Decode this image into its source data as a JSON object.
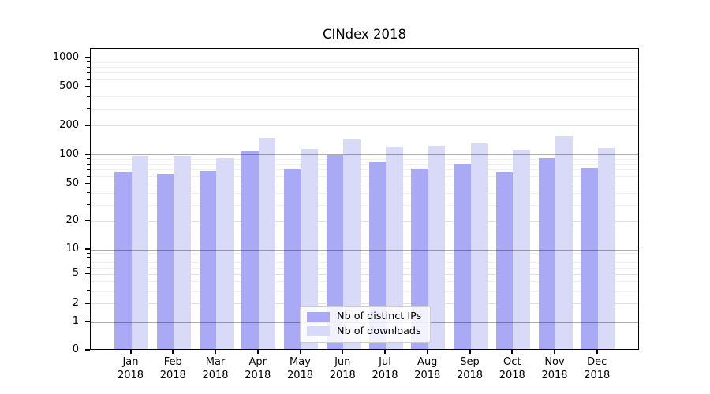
{
  "title": "CINdex 2018",
  "chart_data": {
    "type": "bar",
    "title": "CINdex 2018",
    "categories": [
      "Jan 2018",
      "Feb 2018",
      "Mar 2018",
      "Apr 2018",
      "May 2018",
      "Jun 2018",
      "Jul 2018",
      "Aug 2018",
      "Sep 2018",
      "Oct 2018",
      "Nov 2018",
      "Dec 2018"
    ],
    "series": [
      {
        "name": "Nb of distinct IPs",
        "color": "#a9a9f6",
        "values": [
          65,
          61,
          66,
          106,
          70,
          95,
          83,
          69,
          78,
          65,
          88,
          71
        ]
      },
      {
        "name": "Nb of downloads",
        "color": "#d9d9f8",
        "values": [
          94,
          93,
          89,
          145,
          111,
          139,
          118,
          119,
          127,
          109,
          149,
          113
        ]
      }
    ],
    "xlabel": "",
    "ylabel": "",
    "y_ticks": [
      0,
      1,
      2,
      5,
      10,
      20,
      50,
      100,
      200,
      500,
      1000
    ],
    "ylim": [
      0,
      1300
    ],
    "yscale": "log-like (compressed linear segment from 0 to 1)",
    "grid": "on",
    "legend_position": "lower center"
  },
  "colors": {
    "grid_major": "rgba(0,0,0,0.32)",
    "grid_top": "#cfcfcf",
    "grid_mid": "#e0e0e0",
    "grid_minor": "#f0f0f0",
    "bar_dark": "#a9a9f6",
    "bar_light": "#d9d9f8"
  }
}
